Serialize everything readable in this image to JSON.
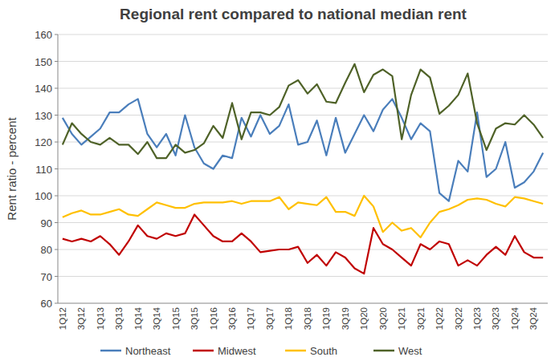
{
  "chart_data": {
    "type": "line",
    "title": "Regional rent compared to national median rent",
    "y_label": "Rent ratio - percent",
    "categories": [
      "1Q12",
      null,
      "3Q12",
      null,
      "1Q13",
      null,
      "3Q13",
      null,
      "1Q14",
      null,
      "3Q14",
      null,
      "1Q15",
      null,
      "3Q15",
      null,
      "1Q16",
      null,
      "3Q16",
      null,
      "1Q17",
      null,
      "3Q17",
      null,
      "1Q18",
      null,
      "3Q18",
      null,
      "1Q19",
      null,
      "3Q19",
      null,
      "1Q20",
      null,
      "3Q20",
      null,
      "1Q21",
      null,
      "3Q21",
      null,
      "1Q22",
      null,
      "3Q22",
      null,
      "1Q23",
      null,
      "3Q23",
      null,
      "1Q24",
      null,
      "3Q24",
      null
    ],
    "series": [
      {
        "name": "Northeast",
        "color": "#4a7ebb",
        "values": [
          129,
          123,
          119,
          122,
          125,
          131,
          131,
          134,
          136,
          123,
          118,
          123,
          115,
          130,
          118,
          112,
          110,
          115,
          114,
          129,
          122,
          130,
          123,
          126,
          134,
          119,
          120,
          128,
          115,
          129,
          116,
          123,
          130,
          124,
          132,
          136,
          129,
          121,
          127,
          124,
          101,
          98,
          113,
          109,
          131,
          107,
          110,
          120,
          103,
          105,
          109,
          116
        ]
      },
      {
        "name": "Midwest",
        "color": "#c00000",
        "values": [
          84,
          83,
          84,
          83,
          85,
          82,
          78,
          83,
          89,
          85,
          84,
          86,
          85,
          86,
          93,
          89,
          85,
          83,
          83,
          86,
          83,
          79,
          79.5,
          80,
          80,
          81,
          75,
          78,
          74,
          79,
          77,
          73,
          71,
          88,
          82,
          80,
          77,
          74,
          82,
          80,
          83,
          82,
          74,
          76,
          74,
          78,
          81,
          78,
          85,
          79,
          77,
          77
        ]
      },
      {
        "name": "South",
        "color": "#ffc000",
        "values": [
          92,
          93.5,
          94.5,
          93,
          93,
          94,
          95,
          93,
          92.5,
          95,
          97.5,
          96.5,
          95.5,
          95.5,
          97,
          97.5,
          97.5,
          97.5,
          98,
          97,
          98,
          98,
          98,
          99.5,
          95,
          97.5,
          97,
          96.5,
          99.5,
          94,
          94,
          92.5,
          100,
          96,
          86.5,
          90,
          87,
          88,
          84.5,
          90,
          94,
          95,
          96.5,
          98.5,
          99,
          98.5,
          97,
          96,
          99.5,
          99,
          98,
          97
        ]
      },
      {
        "name": "West",
        "color": "#4f6228",
        "values": [
          119,
          127,
          123,
          120,
          119,
          121.5,
          119,
          119,
          115.5,
          120,
          114,
          114,
          119,
          116,
          117,
          119.5,
          126,
          121.5,
          134.5,
          121,
          131,
          131,
          130,
          133,
          141,
          143,
          138,
          141.5,
          135,
          134.5,
          142,
          149,
          138.5,
          145,
          147,
          144.5,
          121,
          137.5,
          147,
          144,
          130.5,
          133.5,
          137.5,
          145.5,
          127,
          117,
          125,
          127,
          126.5,
          130,
          126.5,
          121.5
        ]
      }
    ],
    "ylim": [
      60,
      160
    ],
    "yticks": [
      60,
      70,
      80,
      90,
      100,
      110,
      120,
      130,
      140,
      150,
      160
    ],
    "grid": true,
    "legend": "bottom"
  }
}
